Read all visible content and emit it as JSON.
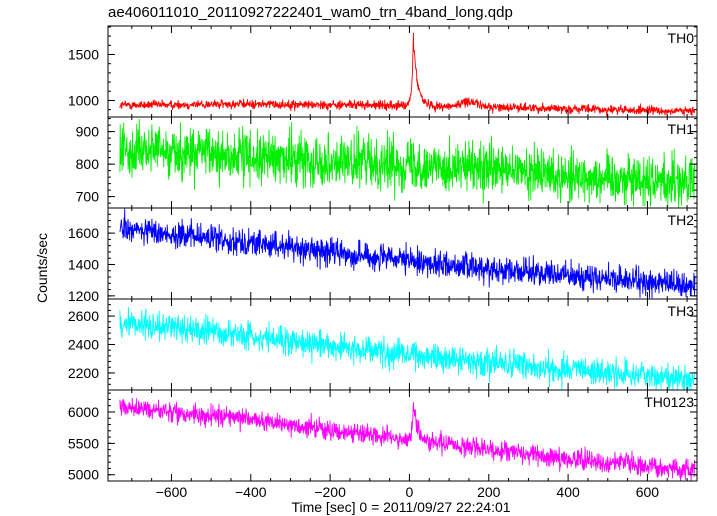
{
  "chart_data": {
    "type": "line",
    "title": "ae406011010_20110927222401_wam0_trn_4band_long.qdp",
    "xlabel": "Time [sec] 0 = 2011/09/27 22:24:01",
    "ylabel": "Counts/sec",
    "x_range": [
      -760,
      725
    ],
    "x_ticks": [
      -600,
      -400,
      -200,
      0,
      200,
      400,
      600
    ],
    "x_tick_labels": [
      "−600",
      "−400",
      "−200",
      "0",
      "200",
      "400",
      "600"
    ],
    "series_x_range": [
      -730,
      720
    ],
    "grid": false,
    "panels": [
      {
        "label": "TH0",
        "color": "#ff0000",
        "ylim": [
          820,
          1810
        ],
        "y_ticks": [
          1000,
          1500
        ],
        "baseline": [
          [
            -730,
            950
          ],
          [
            -400,
            960
          ],
          [
            -100,
            950
          ],
          [
            200,
            930
          ],
          [
            500,
            900
          ],
          [
            720,
            880
          ]
        ],
        "noise": 35,
        "features": [
          {
            "type": "spike",
            "x": 10,
            "peak": 1800,
            "width": 10
          },
          {
            "type": "bump",
            "x": 150,
            "height": 60,
            "width": 18
          }
        ]
      },
      {
        "label": "TH1",
        "color": "#00ee00",
        "ylim": [
          665,
          945
        ],
        "y_ticks": [
          700,
          800,
          900
        ],
        "baseline": [
          [
            -730,
            850
          ],
          [
            -400,
            820
          ],
          [
            0,
            800
          ],
          [
            400,
            765
          ],
          [
            720,
            745
          ]
        ],
        "noise": 55,
        "features": []
      },
      {
        "label": "TH2",
        "color": "#0000ff",
        "ylim": [
          1180,
          1760
        ],
        "y_ticks": [
          1200,
          1400,
          1600
        ],
        "baseline": [
          [
            -730,
            1630
          ],
          [
            -400,
            1540
          ],
          [
            0,
            1420
          ],
          [
            400,
            1330
          ],
          [
            720,
            1260
          ]
        ],
        "noise": 60,
        "features": []
      },
      {
        "label": "TH3",
        "color": "#00ffff",
        "ylim": [
          2080,
          2720
        ],
        "y_ticks": [
          2200,
          2400,
          2600
        ],
        "baseline": [
          [
            -730,
            2560
          ],
          [
            -400,
            2460
          ],
          [
            0,
            2330
          ],
          [
            400,
            2220
          ],
          [
            720,
            2150
          ]
        ],
        "noise": 70,
        "features": []
      },
      {
        "label": "TH0123",
        "color": "#ff00ff",
        "ylim": [
          4900,
          6350
        ],
        "y_ticks": [
          5000,
          5500,
          6000
        ],
        "baseline": [
          [
            -730,
            6080
          ],
          [
            -400,
            5880
          ],
          [
            0,
            5550
          ],
          [
            400,
            5260
          ],
          [
            720,
            5070
          ]
        ],
        "noise": 110,
        "features": [
          {
            "type": "spike",
            "x": 10,
            "peak": 6280,
            "width": 9
          }
        ]
      }
    ]
  }
}
